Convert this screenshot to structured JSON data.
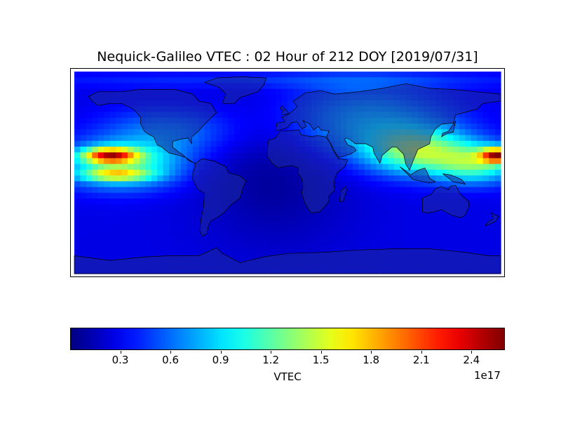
{
  "title": "Nequick-Galileo VTEC : 02 Hour of 212 DOY [2019/07/31]",
  "chart_data": {
    "type": "heatmap",
    "title": "Nequick-Galileo VTEC : 02 Hour of 212 DOY [2019/07/31]",
    "projection": "equirectangular",
    "lon_range": [
      -180,
      180
    ],
    "lat_range": [
      -87.5,
      87.5
    ],
    "colormap": "jet",
    "vmin": 0.0,
    "vmax": 2.6,
    "colorbar": {
      "label": "VTEC",
      "offset_text": "1e17",
      "ticks": [
        0.3,
        0.6,
        0.9,
        1.2,
        1.5,
        1.8,
        2.1,
        2.4
      ],
      "tick_labels": [
        "0.3",
        "0.6",
        "0.9",
        "1.2",
        "1.5",
        "1.8",
        "2.1",
        "2.4"
      ],
      "orientation": "horizontal"
    },
    "features": [
      {
        "kind": "max",
        "lon": -155,
        "lat": 15,
        "value": 2.55
      },
      {
        "kind": "secondary-max",
        "lon": 175,
        "lat": 15,
        "value": 2.3
      },
      {
        "kind": "asia-enhancement",
        "lon": 110,
        "lat": 15,
        "value": 1.2
      },
      {
        "kind": "min",
        "lon": -10,
        "lat": 0,
        "value": 0.1
      }
    ]
  }
}
